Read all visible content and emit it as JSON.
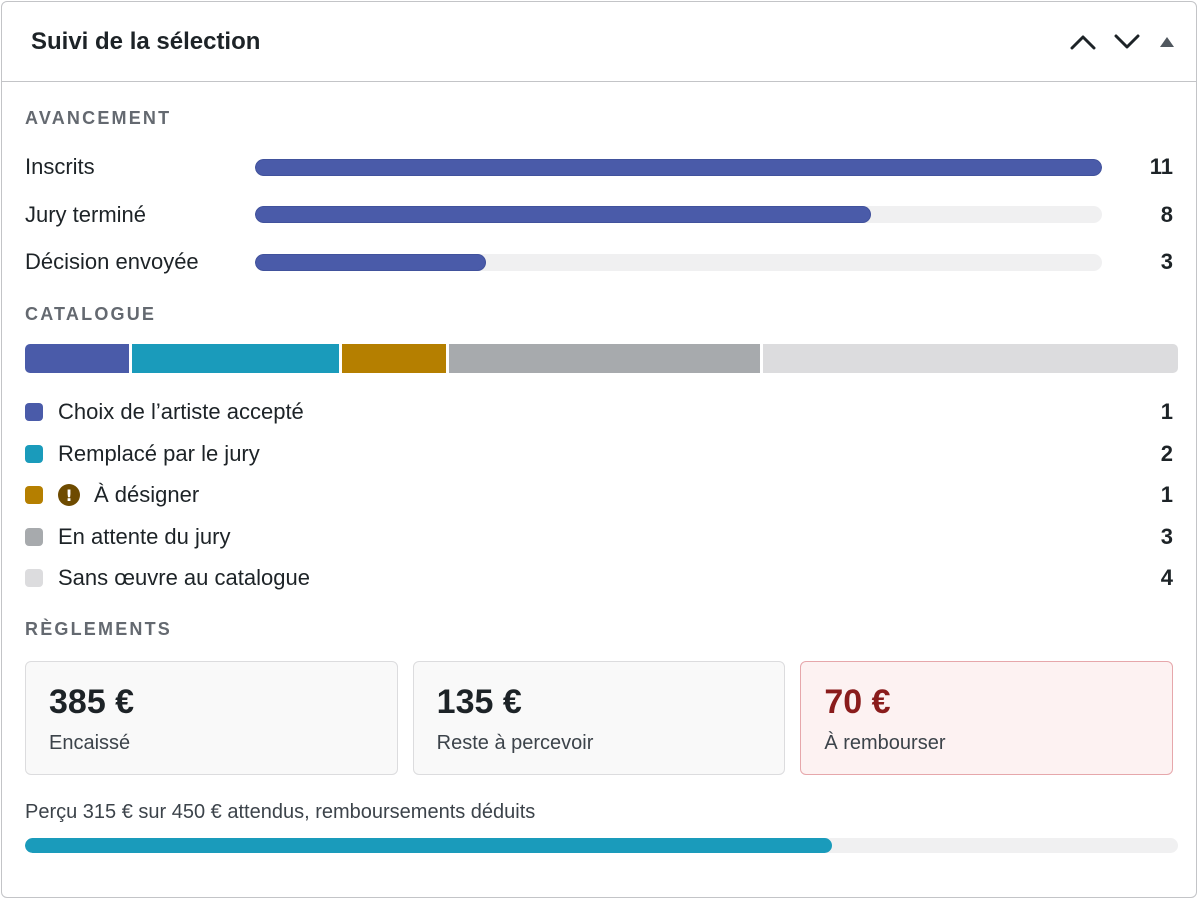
{
  "header": {
    "title": "Suivi de la sélection"
  },
  "colors": {
    "progress": "#4a5ba9",
    "accepted": "#4a5ba9",
    "replaced": "#1a9bbb",
    "to_assign": "#b57f00",
    "pending": "#a7aaad",
    "none": "#dcdcde",
    "payment": "#1a9bbb",
    "refund_amount": "#8a1c1c"
  },
  "progress": {
    "title": "Avancement",
    "total": 11,
    "rows": [
      {
        "label": "Inscrits",
        "count": 11,
        "value": 11
      },
      {
        "label": "Jury terminé",
        "count": 8,
        "value": 8
      },
      {
        "label": "Décision envoyée",
        "count": 3,
        "value": 3
      }
    ]
  },
  "catalogue": {
    "title": "Catalogue",
    "items": [
      {
        "label": "Choix de l’artiste accepté",
        "count": 1,
        "color_key": "accepted",
        "warning": false
      },
      {
        "label": "Remplacé par le jury",
        "count": 2,
        "color_key": "replaced",
        "warning": false
      },
      {
        "label": "À désigner",
        "count": 1,
        "color_key": "to_assign",
        "warning": true
      },
      {
        "label": "En attente du jury",
        "count": 3,
        "color_key": "pending",
        "warning": false
      },
      {
        "label": "Sans œuvre au catalogue",
        "count": 4,
        "color_key": "none",
        "warning": false
      }
    ]
  },
  "payments": {
    "title": "Règlements",
    "cards": [
      {
        "amount": "385 €",
        "label": "Encaissé",
        "type": "normal"
      },
      {
        "amount": "135 €",
        "label": "Reste à percevoir",
        "type": "normal"
      },
      {
        "amount": "70 €",
        "label": "À rembourser",
        "type": "refund"
      }
    ],
    "summary": "Perçu 315 € sur 450 € attendus, remboursements déduits",
    "received": 315,
    "expected": 450
  },
  "icons": {
    "move_up": "chevron-up-icon",
    "move_down": "chevron-down-icon",
    "toggle": "triangle-up-icon",
    "warning": "exclamation-circle-icon"
  }
}
